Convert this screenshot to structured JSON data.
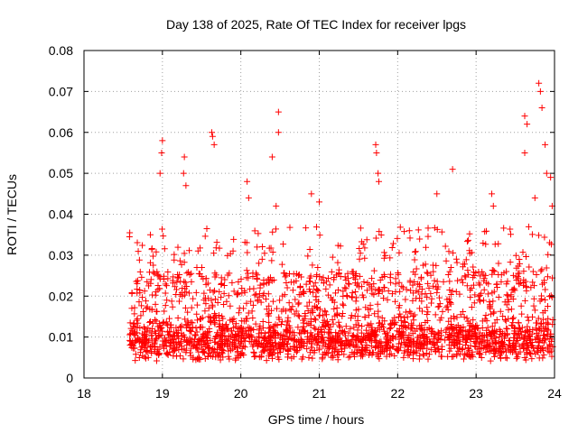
{
  "chart_data": {
    "type": "scatter",
    "title": "Day 138 of 2025, Rate Of TEC Index for receiver lpgs",
    "xlabel": "GPS time / hours",
    "ylabel": "ROTI / TECUs",
    "xlim": [
      18,
      24
    ],
    "ylim": [
      0,
      0.08
    ],
    "grid": true,
    "marker": "+",
    "color": "#ff0000",
    "x_ticks": [
      18,
      19,
      20,
      21,
      22,
      23,
      24
    ],
    "x_tick_labels": [
      "18",
      "19",
      "20",
      "21",
      "22",
      "23",
      "24"
    ],
    "y_ticks": [
      0,
      0.01,
      0.02,
      0.03,
      0.04,
      0.05,
      0.06,
      0.07,
      0.08
    ],
    "y_tick_labels": [
      "0",
      "0.01",
      "0.02",
      "0.03",
      "0.04",
      "0.05",
      "0.06",
      "0.07",
      "0.08"
    ],
    "highlight_points": [
      {
        "x": 19.0,
        "y": 0.058
      },
      {
        "x": 18.99,
        "y": 0.055
      },
      {
        "x": 18.97,
        "y": 0.05
      },
      {
        "x": 19.28,
        "y": 0.054
      },
      {
        "x": 19.27,
        "y": 0.05
      },
      {
        "x": 19.3,
        "y": 0.047
      },
      {
        "x": 19.63,
        "y": 0.06
      },
      {
        "x": 19.64,
        "y": 0.059
      },
      {
        "x": 19.66,
        "y": 0.057
      },
      {
        "x": 20.08,
        "y": 0.048
      },
      {
        "x": 20.1,
        "y": 0.044
      },
      {
        "x": 20.4,
        "y": 0.054
      },
      {
        "x": 20.48,
        "y": 0.065
      },
      {
        "x": 20.48,
        "y": 0.06
      },
      {
        "x": 20.45,
        "y": 0.042
      },
      {
        "x": 20.9,
        "y": 0.045
      },
      {
        "x": 21.0,
        "y": 0.043
      },
      {
        "x": 21.72,
        "y": 0.057
      },
      {
        "x": 21.73,
        "y": 0.055
      },
      {
        "x": 21.75,
        "y": 0.05
      },
      {
        "x": 21.76,
        "y": 0.048
      },
      {
        "x": 22.5,
        "y": 0.045
      },
      {
        "x": 22.7,
        "y": 0.051
      },
      {
        "x": 23.2,
        "y": 0.045
      },
      {
        "x": 23.22,
        "y": 0.042
      },
      {
        "x": 23.62,
        "y": 0.064
      },
      {
        "x": 23.65,
        "y": 0.062
      },
      {
        "x": 23.62,
        "y": 0.055
      },
      {
        "x": 23.8,
        "y": 0.072
      },
      {
        "x": 23.82,
        "y": 0.07
      },
      {
        "x": 23.84,
        "y": 0.066
      },
      {
        "x": 23.88,
        "y": 0.057
      },
      {
        "x": 23.9,
        "y": 0.05
      },
      {
        "x": 23.95,
        "y": 0.049
      },
      {
        "x": 23.75,
        "y": 0.044
      },
      {
        "x": 23.97,
        "y": 0.042
      }
    ],
    "bulk_distribution": {
      "x_range": [
        18.58,
        23.98
      ],
      "note": "dense cloud of points mostly between 0.004 and 0.03 TECUs",
      "point_count": 2400,
      "random_seed": 138
    }
  }
}
